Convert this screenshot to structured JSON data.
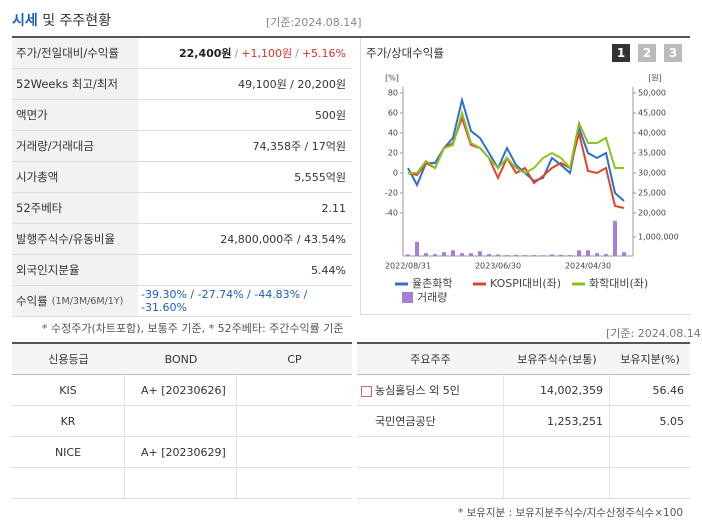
{
  "header": {
    "title_a": "시세",
    "title_b": "및 주주현황",
    "date": "[기준:2024.08.14]"
  },
  "quote_table": {
    "rows": [
      {
        "label": "주가/전일대비/수익률",
        "parts": [
          "22,400원",
          "/",
          "+1,100원",
          "/",
          "+5.16%"
        ]
      },
      {
        "label": "52Weeks 최고/최저",
        "parts": [
          "49,100원 / 20,200원"
        ]
      },
      {
        "label": "액면가",
        "parts": [
          "500원"
        ]
      },
      {
        "label": "거래량/거래대금",
        "parts": [
          "74,358주 / 17억원"
        ]
      },
      {
        "label": "시가총액",
        "parts": [
          "5,555억원"
        ]
      },
      {
        "label": "52주베타",
        "parts": [
          "2.11"
        ]
      },
      {
        "label": "발행주식수/유동비율",
        "parts": [
          "24,800,000주 / 43.54%"
        ]
      },
      {
        "label": "외국인지분율",
        "parts": [
          "5.44%"
        ]
      },
      {
        "label": "수익률",
        "sub": "(1M/3M/6M/1Y)",
        "parts": [
          "-39.30% / -27.74% / -44.83% / -31.60%"
        ]
      }
    ]
  },
  "quote_note": "* 수정주가(차트포함), 보통주 기준, * 52주베타: 주간수익률 기준",
  "chart_panel": {
    "title": "주가/상대수익률",
    "buttons": [
      "1",
      "2",
      "3"
    ]
  },
  "chart_data": {
    "type": "line",
    "y_unit": "[%]",
    "y2_unit": "[원]",
    "categories": [
      "2022/08/31",
      null,
      null,
      null,
      null,
      null,
      null,
      null,
      null,
      null,
      "2023/06/30",
      null,
      null,
      null,
      null,
      null,
      null,
      null,
      null,
      null,
      "2024/04/30",
      null,
      null,
      null,
      null
    ],
    "ylim": [
      -40,
      80
    ],
    "yticks": [
      80,
      60,
      40,
      20,
      0,
      -20,
      -40
    ],
    "y2lim": [
      20000,
      50000
    ],
    "y2ticks": [
      {
        "value": 50000,
        "label": "50,000"
      },
      {
        "value": 45000,
        "label": "45,000"
      },
      {
        "value": 40000,
        "label": "40,000"
      },
      {
        "value": 35000,
        "label": "35,000"
      },
      {
        "value": 30000,
        "label": "30,000"
      },
      {
        "value": 25000,
        "label": "25,000"
      },
      {
        "value": 20000,
        "label": "20,000"
      }
    ],
    "volume_lim": [
      0,
      2000000
    ],
    "volume_ticks": [
      {
        "value": 1000000,
        "label": "1,000,000"
      }
    ],
    "series": [
      {
        "name": "율촌화학",
        "color": "#2e6fd0",
        "values": [
          5,
          -12,
          10,
          10,
          25,
          35,
          73,
          42,
          35,
          20,
          5,
          25,
          8,
          0,
          -8,
          -5,
          15,
          8,
          0,
          45,
          20,
          15,
          20,
          -20,
          -28
        ]
      },
      {
        "name": "KOSPI대비(좌)",
        "color": "#e0452b",
        "values": [
          0,
          -2,
          10,
          5,
          25,
          30,
          55,
          28,
          25,
          15,
          -5,
          15,
          0,
          5,
          -10,
          -3,
          5,
          10,
          5,
          40,
          2,
          0,
          5,
          -33,
          -35
        ]
      },
      {
        "name": "화학대비(좌)",
        "color": "#8cc21e",
        "values": [
          0,
          0,
          12,
          5,
          25,
          28,
          60,
          30,
          25,
          15,
          5,
          15,
          5,
          0,
          5,
          15,
          20,
          15,
          5,
          50,
          30,
          30,
          35,
          5,
          5
        ]
      }
    ],
    "volume": {
      "name": "거래량",
      "color": "#a77fd6",
      "values": [
        80000,
        750000,
        150000,
        100000,
        200000,
        300000,
        150000,
        150000,
        250000,
        100000,
        80000,
        50000,
        60000,
        50000,
        50000,
        40000,
        80000,
        60000,
        50000,
        300000,
        300000,
        150000,
        100000,
        1850000,
        200000
      ]
    }
  },
  "credit_table": {
    "header": [
      "신용등급",
      "BOND",
      "CP"
    ],
    "rows": [
      [
        "KIS",
        "A+ [20230626]"
      ],
      [
        "KR"
      ],
      [
        "NICE",
        "A+ [20230629]"
      ]
    ]
  },
  "holders": {
    "date": "[기준: 2024.08.14]",
    "header": [
      "주요주주",
      "보유주식수(보통)",
      "보유지분(%)"
    ],
    "rows": [
      [
        "농심홀딩스 외 5인",
        "14,002,359",
        "56.46"
      ],
      [
        "국민연금공단",
        "1,253,251",
        "5.05"
      ]
    ],
    "note": "* 보유지분 : 보유지분주식수/지수산정주식수×100"
  }
}
